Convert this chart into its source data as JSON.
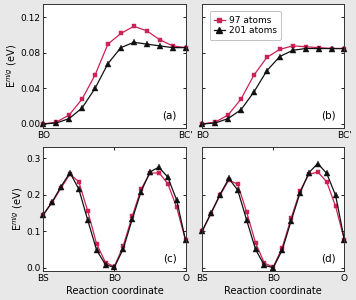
{
  "panel_a": {
    "pink_y": [
      0.0,
      0.002,
      0.01,
      0.028,
      0.055,
      0.09,
      0.102,
      0.11,
      0.105,
      0.095,
      0.088,
      0.086
    ],
    "black_y": [
      0.0,
      0.001,
      0.006,
      0.018,
      0.04,
      0.068,
      0.086,
      0.092,
      0.09,
      0.088,
      0.086,
      0.086
    ],
    "xtick_pos": [
      0,
      11
    ],
    "xtick_lab": [
      "BO",
      "BC'"
    ],
    "yticks": [
      0,
      0.04,
      0.08,
      0.12
    ],
    "ylim": [
      -0.005,
      0.135
    ],
    "label": "(a)"
  },
  "panel_b": {
    "pink_y": [
      0.0,
      0.002,
      0.01,
      0.028,
      0.055,
      0.075,
      0.084,
      0.088,
      0.087,
      0.086,
      0.085,
      0.085
    ],
    "black_y": [
      0.0,
      0.001,
      0.006,
      0.016,
      0.036,
      0.06,
      0.076,
      0.083,
      0.085,
      0.085,
      0.085,
      0.085
    ],
    "xtick_pos": [
      0,
      11
    ],
    "xtick_lab": [
      "BO",
      "BC'"
    ],
    "yticks": [
      0,
      0.04,
      0.08,
      0.12
    ],
    "ylim": [
      -0.005,
      0.135
    ],
    "label": "(b)"
  },
  "panel_c": {
    "pink_y": [
      0.145,
      0.178,
      0.218,
      0.256,
      0.235,
      0.155,
      0.065,
      0.014,
      0.003,
      0.06,
      0.14,
      0.215,
      0.258,
      0.26,
      0.23,
      0.165,
      0.075
    ],
    "black_y": [
      0.145,
      0.18,
      0.222,
      0.26,
      0.215,
      0.13,
      0.048,
      0.008,
      0.001,
      0.052,
      0.132,
      0.208,
      0.262,
      0.275,
      0.248,
      0.185,
      0.075
    ],
    "xtick_pos": [
      0,
      8,
      16
    ],
    "xtick_lab": [
      "BS",
      "BO",
      "O"
    ],
    "yticks": [
      0,
      0.1,
      0.2,
      0.3
    ],
    "ylim": [
      -0.01,
      0.33
    ],
    "label": "(c)"
  },
  "panel_d": {
    "pink_y": [
      0.1,
      0.148,
      0.198,
      0.24,
      0.228,
      0.152,
      0.068,
      0.012,
      0.002,
      0.055,
      0.135,
      0.21,
      0.255,
      0.262,
      0.235,
      0.168,
      0.075
    ],
    "black_y": [
      0.1,
      0.15,
      0.2,
      0.244,
      0.212,
      0.13,
      0.05,
      0.006,
      0.0,
      0.048,
      0.128,
      0.204,
      0.26,
      0.285,
      0.258,
      0.198,
      0.075
    ],
    "xtick_pos": [
      0,
      8,
      16
    ],
    "xtick_lab": [
      "BS",
      "BO",
      "O"
    ],
    "yticks": [
      0,
      0.1,
      0.2,
      0.3
    ],
    "ylim": [
      -0.01,
      0.33
    ],
    "label": "(d)"
  },
  "pink_color": "#cc2255",
  "black_color": "#111111",
  "legend_labels": [
    "97 atoms",
    "201 atoms"
  ],
  "ylabel_top": "E$^{mig}$ (eV)",
  "ylabel_bot": "E$^{mig}$ (eV)",
  "xlabel_bot": "Reaction coordinate",
  "bg_color": "#ffffff",
  "fig_bg": "#e8e8e8"
}
